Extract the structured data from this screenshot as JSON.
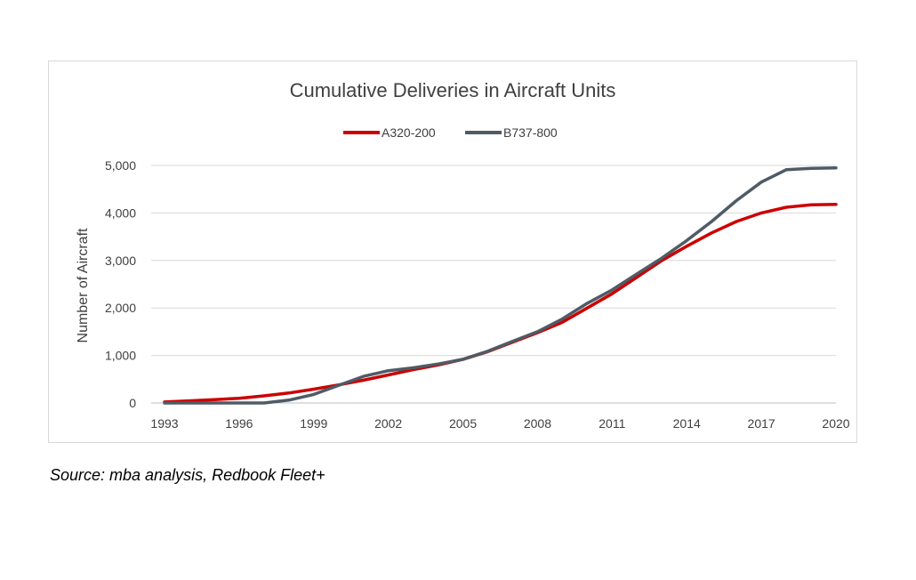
{
  "source_note": "Source: mba analysis, Redbook Fleet+",
  "chart_data": {
    "type": "line",
    "title": "Cumulative Deliveries in Aircraft Units",
    "xlabel": "",
    "ylabel": "Number of Aircraft",
    "x": [
      1993,
      1994,
      1995,
      1996,
      1997,
      1998,
      1999,
      2000,
      2001,
      2002,
      2003,
      2004,
      2005,
      2006,
      2007,
      2008,
      2009,
      2010,
      2011,
      2012,
      2013,
      2014,
      2015,
      2016,
      2017,
      2018,
      2019,
      2020
    ],
    "xticks": [
      "1993",
      "1996",
      "1999",
      "2002",
      "2005",
      "2008",
      "2011",
      "2014",
      "2017",
      "2020"
    ],
    "yticks": [
      "0",
      "1,000",
      "2,000",
      "3,000",
      "4,000",
      "5,000"
    ],
    "ylim": [
      0,
      5000
    ],
    "grid": true,
    "legend_position": "top",
    "series": [
      {
        "name": "A320-200",
        "color": "#cc0000",
        "values": [
          20,
          45,
          70,
          100,
          150,
          210,
          290,
          380,
          480,
          590,
          700,
          800,
          920,
          1080,
          1280,
          1480,
          1700,
          2000,
          2300,
          2650,
          3000,
          3300,
          3580,
          3820,
          4000,
          4120,
          4170,
          4180
        ]
      },
      {
        "name": "B737-800",
        "color": "#4f5b66",
        "values": [
          0,
          0,
          0,
          0,
          0,
          60,
          180,
          370,
          560,
          680,
          740,
          820,
          920,
          1090,
          1300,
          1500,
          1770,
          2100,
          2380,
          2720,
          3050,
          3420,
          3820,
          4260,
          4650,
          4910,
          4940,
          4950
        ]
      }
    ]
  }
}
